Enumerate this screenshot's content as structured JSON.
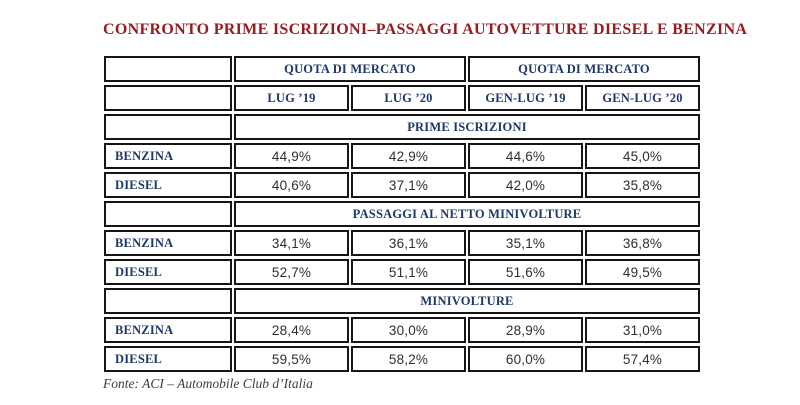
{
  "colors": {
    "title_red": "#971b1f",
    "header_navy": "#1d3768",
    "border_black": "#161616",
    "value_gray": "#2e2e2e"
  },
  "chart_data": {
    "type": "table",
    "title": "CONFRONTO PRIME ISCRIZIONI–PASSAGGI AUTOVETTURE DIESEL E BENZINA",
    "column_groups": [
      "QUOTA DI MERCATO",
      "QUOTA DI MERCATO"
    ],
    "columns": [
      "LUG ’19",
      "LUG ’20",
      "GEN-LUG ’19",
      "GEN-LUG ’20"
    ],
    "sections": [
      {
        "name": "PRIME ISCRIZIONI",
        "rows": [
          {
            "label": "BENZINA",
            "values": [
              "44,9%",
              "42,9%",
              "44,6%",
              "45,0%"
            ]
          },
          {
            "label": "DIESEL",
            "values": [
              "40,6%",
              "37,1%",
              "42,0%",
              "35,8%"
            ]
          }
        ]
      },
      {
        "name": "PASSAGGI AL NETTO MINIVOLTURE",
        "rows": [
          {
            "label": "BENZINA",
            "values": [
              "34,1%",
              "36,1%",
              "35,1%",
              "36,8%"
            ]
          },
          {
            "label": "DIESEL",
            "values": [
              "52,7%",
              "51,1%",
              "51,6%",
              "49,5%"
            ]
          }
        ]
      },
      {
        "name": "MINIVOLTURE",
        "rows": [
          {
            "label": "BENZINA",
            "values": [
              "28,4%",
              "30,0%",
              "28,9%",
              "31,0%"
            ]
          },
          {
            "label": "DIESEL",
            "values": [
              "59,5%",
              "58,2%",
              "60,0%",
              "57,4%"
            ]
          }
        ]
      }
    ],
    "source": "Fonte: ACI – Automobile Club d’Italia"
  }
}
